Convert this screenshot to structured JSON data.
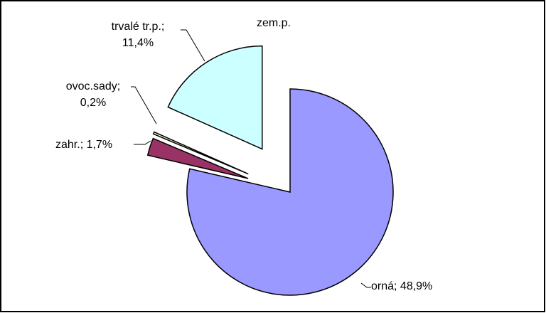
{
  "chart_data": {
    "type": "pie",
    "title": "zem.p.",
    "values": [
      48.9,
      1.7,
      0.2,
      11.4
    ],
    "value_labels": [
      "orná; 48,9%",
      "zahr.; 1,7%",
      "ovoc.sady; 0,2%",
      "trvalé tr.p.; 11,4%"
    ],
    "colors": [
      "#9999ff",
      "#993366",
      "#ffffcc",
      "#ccffff"
    ]
  }
}
